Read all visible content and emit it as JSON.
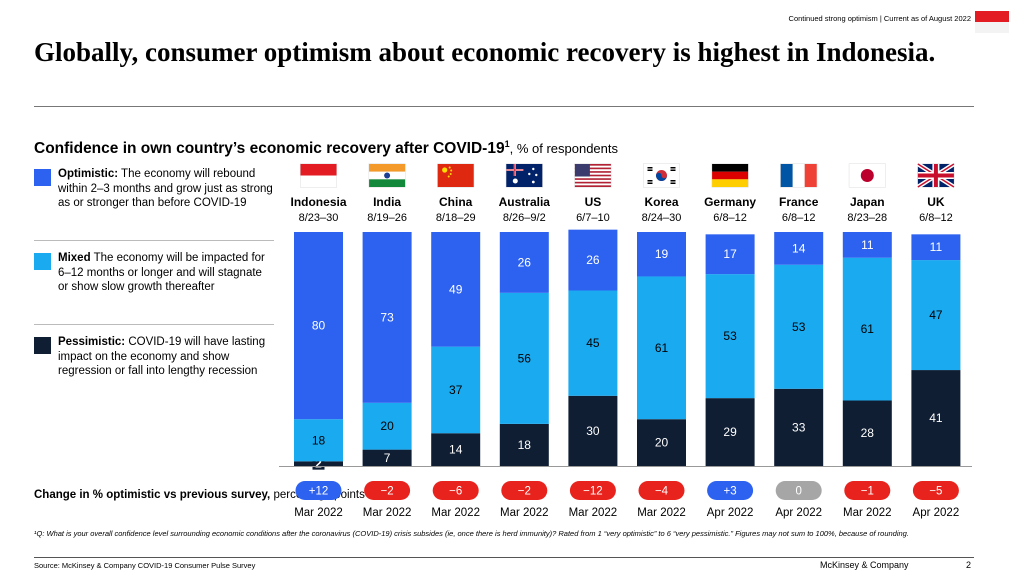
{
  "header": {
    "top_note": "Continued strong optimism | Current as of August 2022",
    "title": "Globally, consumer optimism about economic recovery is highest in Indonesia."
  },
  "subtitle": {
    "main": "Confidence in own country’s economic recovery after COVID-19",
    "sup": "1",
    "unit": ", % of respondents"
  },
  "legend": [
    {
      "key": "Optimistic:",
      "text": " The economy will rebound within 2–3 months and grow just as strong as or stronger than before COVID-19",
      "color": "#2d62f0"
    },
    {
      "key": "Mixed",
      "text": " The economy will be impacted for 6–12 months or longer and will stagnate or show slow growth thereafter",
      "color": "#1aaaf0"
    },
    {
      "key": "Pessimistic:",
      "text": " COVID-19 will have lasting impact on the economy and show regression or fall into lengthy recession",
      "color": "#0f1e33"
    }
  ],
  "change_label": {
    "bold": "Change in % optimistic vs previous survey,",
    "normal": " percentage points"
  },
  "footnote": "¹Q: What is your overall confidence level surrounding economic conditions after the coronavirus (COVID-19) crisis subsides (ie, once there is herd immunity)? Rated from 1 “very optimistic” to 6 “very pessimistic.” Figures may not sum to 100%, because of rounding.",
  "source": "Source: McKinsey & Company COVID-19 Consumer Pulse Survey",
  "brand": "McKinsey & Company",
  "page_number": "2",
  "chart_data": {
    "type": "bar",
    "stacked": true,
    "title": "Confidence in own country’s economic recovery after COVID-19",
    "ylabel": "% of respondents",
    "ylim": [
      0,
      100
    ],
    "categories": [
      "Indonesia",
      "India",
      "China",
      "Australia",
      "US",
      "Korea",
      "Germany",
      "France",
      "Japan",
      "UK"
    ],
    "dates": [
      "8/23–30",
      "8/19–26",
      "8/18–29",
      "8/26–9/2",
      "6/7–10",
      "8/24–30",
      "6/8–12",
      "6/8–12",
      "8/23–28",
      "6/8–12"
    ],
    "flags": [
      "indonesia-flag",
      "india-flag",
      "china-flag",
      "australia-flag",
      "us-flag",
      "korea-flag",
      "germany-flag",
      "france-flag",
      "japan-flag",
      "uk-flag"
    ],
    "series": [
      {
        "name": "Pessimistic",
        "color": "#0f1e33",
        "values": [
          2,
          7,
          14,
          18,
          30,
          20,
          29,
          33,
          28,
          41
        ]
      },
      {
        "name": "Mixed",
        "color": "#1aaaf0",
        "values": [
          18,
          20,
          37,
          56,
          45,
          61,
          53,
          53,
          61,
          47
        ]
      },
      {
        "name": "Optimistic",
        "color": "#2d62f0",
        "values": [
          80,
          73,
          49,
          26,
          26,
          19,
          17,
          14,
          11,
          11
        ]
      }
    ],
    "change": [
      "+12",
      "−2",
      "−6",
      "−2",
      "−12",
      "−4",
      "+3",
      "0",
      "−1",
      "−5"
    ],
    "change_colors": [
      "#2d62f0",
      "#e8221c",
      "#e8221c",
      "#e8221c",
      "#e8221c",
      "#e8221c",
      "#2d62f0",
      "#a6a6a6",
      "#e8221c",
      "#e8221c"
    ],
    "previous_survey": [
      "Mar 2022",
      "Mar 2022",
      "Mar 2022",
      "Mar 2022",
      "Mar 2022",
      "Mar 2022",
      "Apr 2022",
      "Apr 2022",
      "Mar 2022",
      "Apr 2022"
    ]
  }
}
